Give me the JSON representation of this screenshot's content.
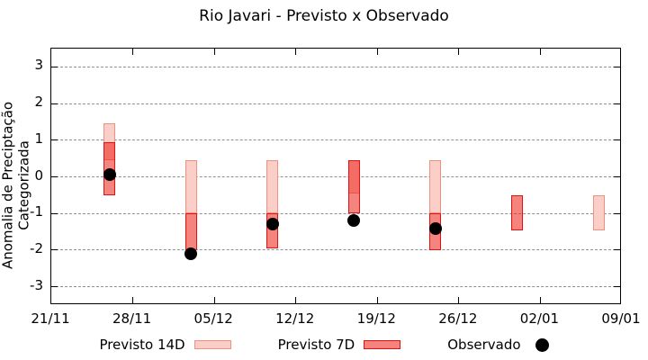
{
  "title": "Rio Javari - Previsto x Observado",
  "chart_data": {
    "type": "bar",
    "subtype": "range-bars-with-observed-scatter",
    "title": "Rio Javari - Previsto x Observado",
    "xlabel": "",
    "ylabel": "Anomalia de Preciptação Categorizada",
    "grid": "horizontal-dashed",
    "legend_position": "bottom-center",
    "x_axis": {
      "tick_labels": [
        "21/11",
        "28/11",
        "05/12",
        "12/12",
        "19/12",
        "26/12",
        "02/01",
        "09/01"
      ],
      "tick_days": [
        0,
        7,
        14,
        21,
        28,
        35,
        42,
        49
      ],
      "total_days": 49
    },
    "y_axis": {
      "label": "Anomalia de Preciptação Categorizada",
      "ticks": [
        3,
        2,
        1,
        0,
        -1,
        -2,
        -3
      ],
      "range": [
        -3.5,
        3.5
      ]
    },
    "legend": [
      {
        "label": "Previsto 14D",
        "swatch": "light-pink-box"
      },
      {
        "label": "Previsto 7D",
        "swatch": "red-box"
      },
      {
        "label": "Observado",
        "swatch": "black-dot"
      }
    ],
    "colors": {
      "previsto_14d_fill": "#fbcfc7",
      "previsto_14d_border": "#f0907f",
      "previsto_7d_fill": "#f5827b",
      "previsto_7d_border": "#e41111",
      "overlap_fill": "#f0625f",
      "observado": "#000000",
      "gridline": "#909090"
    },
    "series": [
      {
        "name": "Previsto 14D",
        "type": "range-bar",
        "points": [
          {
            "day": 5,
            "date_est": "26/11",
            "low": 0.45,
            "high": 1.45
          },
          {
            "day": 12,
            "date_est": "03/12",
            "low": -1.0,
            "high": 0.45
          },
          {
            "day": 19,
            "date_est": "10/12",
            "low": -1.0,
            "high": 0.45
          },
          {
            "day": 26,
            "date_est": "17/12",
            "low": -0.45,
            "high": 0.45
          },
          {
            "day": 33,
            "date_est": "24/12",
            "low": -1.0,
            "high": 0.45
          },
          {
            "day": 47,
            "date_est": "07/01",
            "low": -1.45,
            "high": -0.5
          }
        ]
      },
      {
        "name": "Previsto 7D",
        "type": "range-bar",
        "points": [
          {
            "day": 5,
            "date_est": "26/11",
            "low": -0.5,
            "high": 0.95
          },
          {
            "day": 12,
            "date_est": "03/12",
            "low": -2.0,
            "high": -1.0
          },
          {
            "day": 19,
            "date_est": "10/12",
            "low": -1.95,
            "high": -1.0
          },
          {
            "day": 26,
            "date_est": "17/12",
            "low": -1.0,
            "high": 0.45
          },
          {
            "day": 33,
            "date_est": "24/12",
            "low": -2.0,
            "high": -1.0
          },
          {
            "day": 40,
            "date_est": "31/12",
            "low": -1.45,
            "high": -0.5
          }
        ]
      },
      {
        "name": "Observado",
        "type": "scatter",
        "points": [
          {
            "day": 5,
            "date_est": "26/11",
            "value": 0.05
          },
          {
            "day": 12,
            "date_est": "03/12",
            "value": -2.1
          },
          {
            "day": 19,
            "date_est": "10/12",
            "value": -1.3
          },
          {
            "day": 26,
            "date_est": "17/12",
            "value": -1.2
          },
          {
            "day": 33,
            "date_est": "24/12",
            "value": -1.4
          }
        ]
      }
    ]
  }
}
